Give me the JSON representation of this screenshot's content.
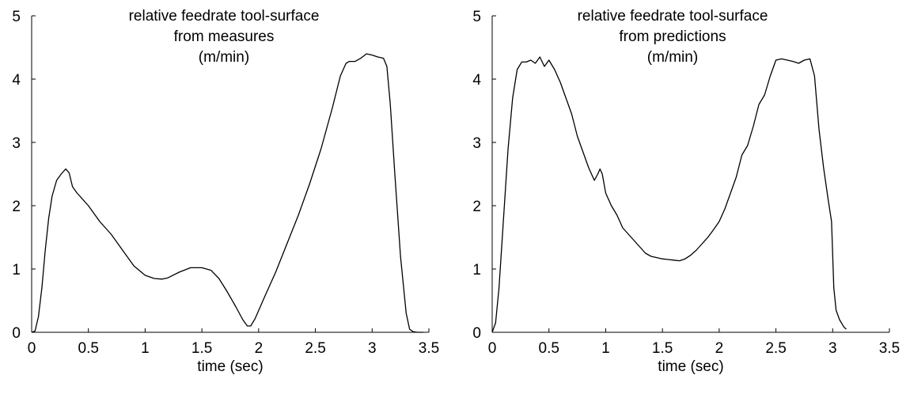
{
  "chart_data": [
    {
      "type": "line",
      "title_lines": [
        "relative feedrate tool-surface",
        "from measures",
        "(m/min)"
      ],
      "xlabel": "time (sec)",
      "ylabel": "",
      "xlim": [
        0,
        3.5
      ],
      "ylim": [
        0,
        5
      ],
      "xticks": [
        0,
        0.5,
        1,
        1.5,
        2,
        2.5,
        3,
        3.5
      ],
      "xtick_labels": [
        "0",
        "0.5",
        "1",
        "1.5",
        "2",
        "2.5",
        "3",
        "3.5"
      ],
      "yticks": [
        0,
        1,
        2,
        3,
        4,
        5
      ],
      "ytick_labels": [
        "0",
        "1",
        "2",
        "3",
        "4",
        "5"
      ],
      "grid": false,
      "series": [
        {
          "color": "#000000",
          "x": [
            0,
            0.03,
            0.06,
            0.09,
            0.12,
            0.15,
            0.18,
            0.22,
            0.26,
            0.3,
            0.33,
            0.36,
            0.4,
            0.5,
            0.6,
            0.7,
            0.8,
            0.9,
            1.0,
            1.08,
            1.15,
            1.2,
            1.3,
            1.4,
            1.5,
            1.58,
            1.65,
            1.72,
            1.8,
            1.86,
            1.9,
            1.93,
            1.97,
            2.05,
            2.15,
            2.25,
            2.35,
            2.45,
            2.55,
            2.65,
            2.72,
            2.77,
            2.8,
            2.85,
            2.9,
            2.95,
            3.0,
            3.05,
            3.1,
            3.13,
            3.16,
            3.2,
            3.25,
            3.3,
            3.33,
            3.36,
            3.4,
            3.45
          ],
          "y": [
            0,
            0.02,
            0.25,
            0.7,
            1.3,
            1.8,
            2.15,
            2.4,
            2.5,
            2.58,
            2.52,
            2.3,
            2.2,
            2.0,
            1.75,
            1.55,
            1.3,
            1.05,
            0.9,
            0.85,
            0.84,
            0.86,
            0.95,
            1.02,
            1.02,
            0.98,
            0.85,
            0.65,
            0.4,
            0.2,
            0.1,
            0.1,
            0.22,
            0.55,
            0.95,
            1.4,
            1.85,
            2.35,
            2.9,
            3.55,
            4.05,
            4.25,
            4.28,
            4.28,
            4.33,
            4.4,
            4.38,
            4.35,
            4.33,
            4.2,
            3.6,
            2.5,
            1.2,
            0.3,
            0.05,
            0.01,
            0.0,
            0.0
          ]
        }
      ]
    },
    {
      "type": "line",
      "title_lines": [
        "relative feedrate tool-surface",
        "from predictions",
        "(m/min)"
      ],
      "xlabel": "time (sec)",
      "ylabel": "",
      "xlim": [
        0,
        3.5
      ],
      "ylim": [
        0,
        5
      ],
      "xticks": [
        0,
        0.5,
        1,
        1.5,
        2,
        2.5,
        3,
        3.5
      ],
      "xtick_labels": [
        "0",
        "0.5",
        "1",
        "1.5",
        "2",
        "2.5",
        "3",
        "3.5"
      ],
      "yticks": [
        0,
        1,
        2,
        3,
        4,
        5
      ],
      "ytick_labels": [
        "0",
        "1",
        "2",
        "3",
        "4",
        "5"
      ],
      "grid": false,
      "series": [
        {
          "color": "#000000",
          "x": [
            0,
            0.03,
            0.06,
            0.1,
            0.14,
            0.18,
            0.22,
            0.26,
            0.3,
            0.34,
            0.38,
            0.42,
            0.46,
            0.5,
            0.55,
            0.6,
            0.65,
            0.7,
            0.75,
            0.8,
            0.85,
            0.9,
            0.93,
            0.95,
            0.97,
            1.0,
            1.05,
            1.1,
            1.15,
            1.2,
            1.25,
            1.3,
            1.35,
            1.4,
            1.45,
            1.5,
            1.55,
            1.6,
            1.65,
            1.7,
            1.75,
            1.8,
            1.85,
            1.9,
            1.95,
            2.0,
            2.05,
            2.1,
            2.15,
            2.2,
            2.25,
            2.3,
            2.35,
            2.4,
            2.45,
            2.5,
            2.55,
            2.6,
            2.65,
            2.7,
            2.75,
            2.8,
            2.84,
            2.88,
            2.92,
            2.96,
            2.99,
            3.01,
            3.03,
            3.06,
            3.1,
            3.12
          ],
          "y": [
            0,
            0.15,
            0.7,
            1.8,
            2.9,
            3.7,
            4.15,
            4.27,
            4.27,
            4.3,
            4.25,
            4.35,
            4.2,
            4.3,
            4.15,
            3.95,
            3.7,
            3.45,
            3.1,
            2.85,
            2.6,
            2.4,
            2.5,
            2.58,
            2.5,
            2.2,
            2.0,
            1.85,
            1.65,
            1.55,
            1.45,
            1.35,
            1.25,
            1.2,
            1.18,
            1.16,
            1.15,
            1.14,
            1.13,
            1.16,
            1.22,
            1.3,
            1.4,
            1.5,
            1.62,
            1.75,
            1.95,
            2.2,
            2.45,
            2.8,
            2.95,
            3.25,
            3.6,
            3.75,
            4.05,
            4.3,
            4.32,
            4.3,
            4.28,
            4.25,
            4.3,
            4.32,
            4.05,
            3.2,
            2.6,
            2.1,
            1.75,
            0.7,
            0.35,
            0.2,
            0.08,
            0.05
          ]
        }
      ]
    }
  ]
}
